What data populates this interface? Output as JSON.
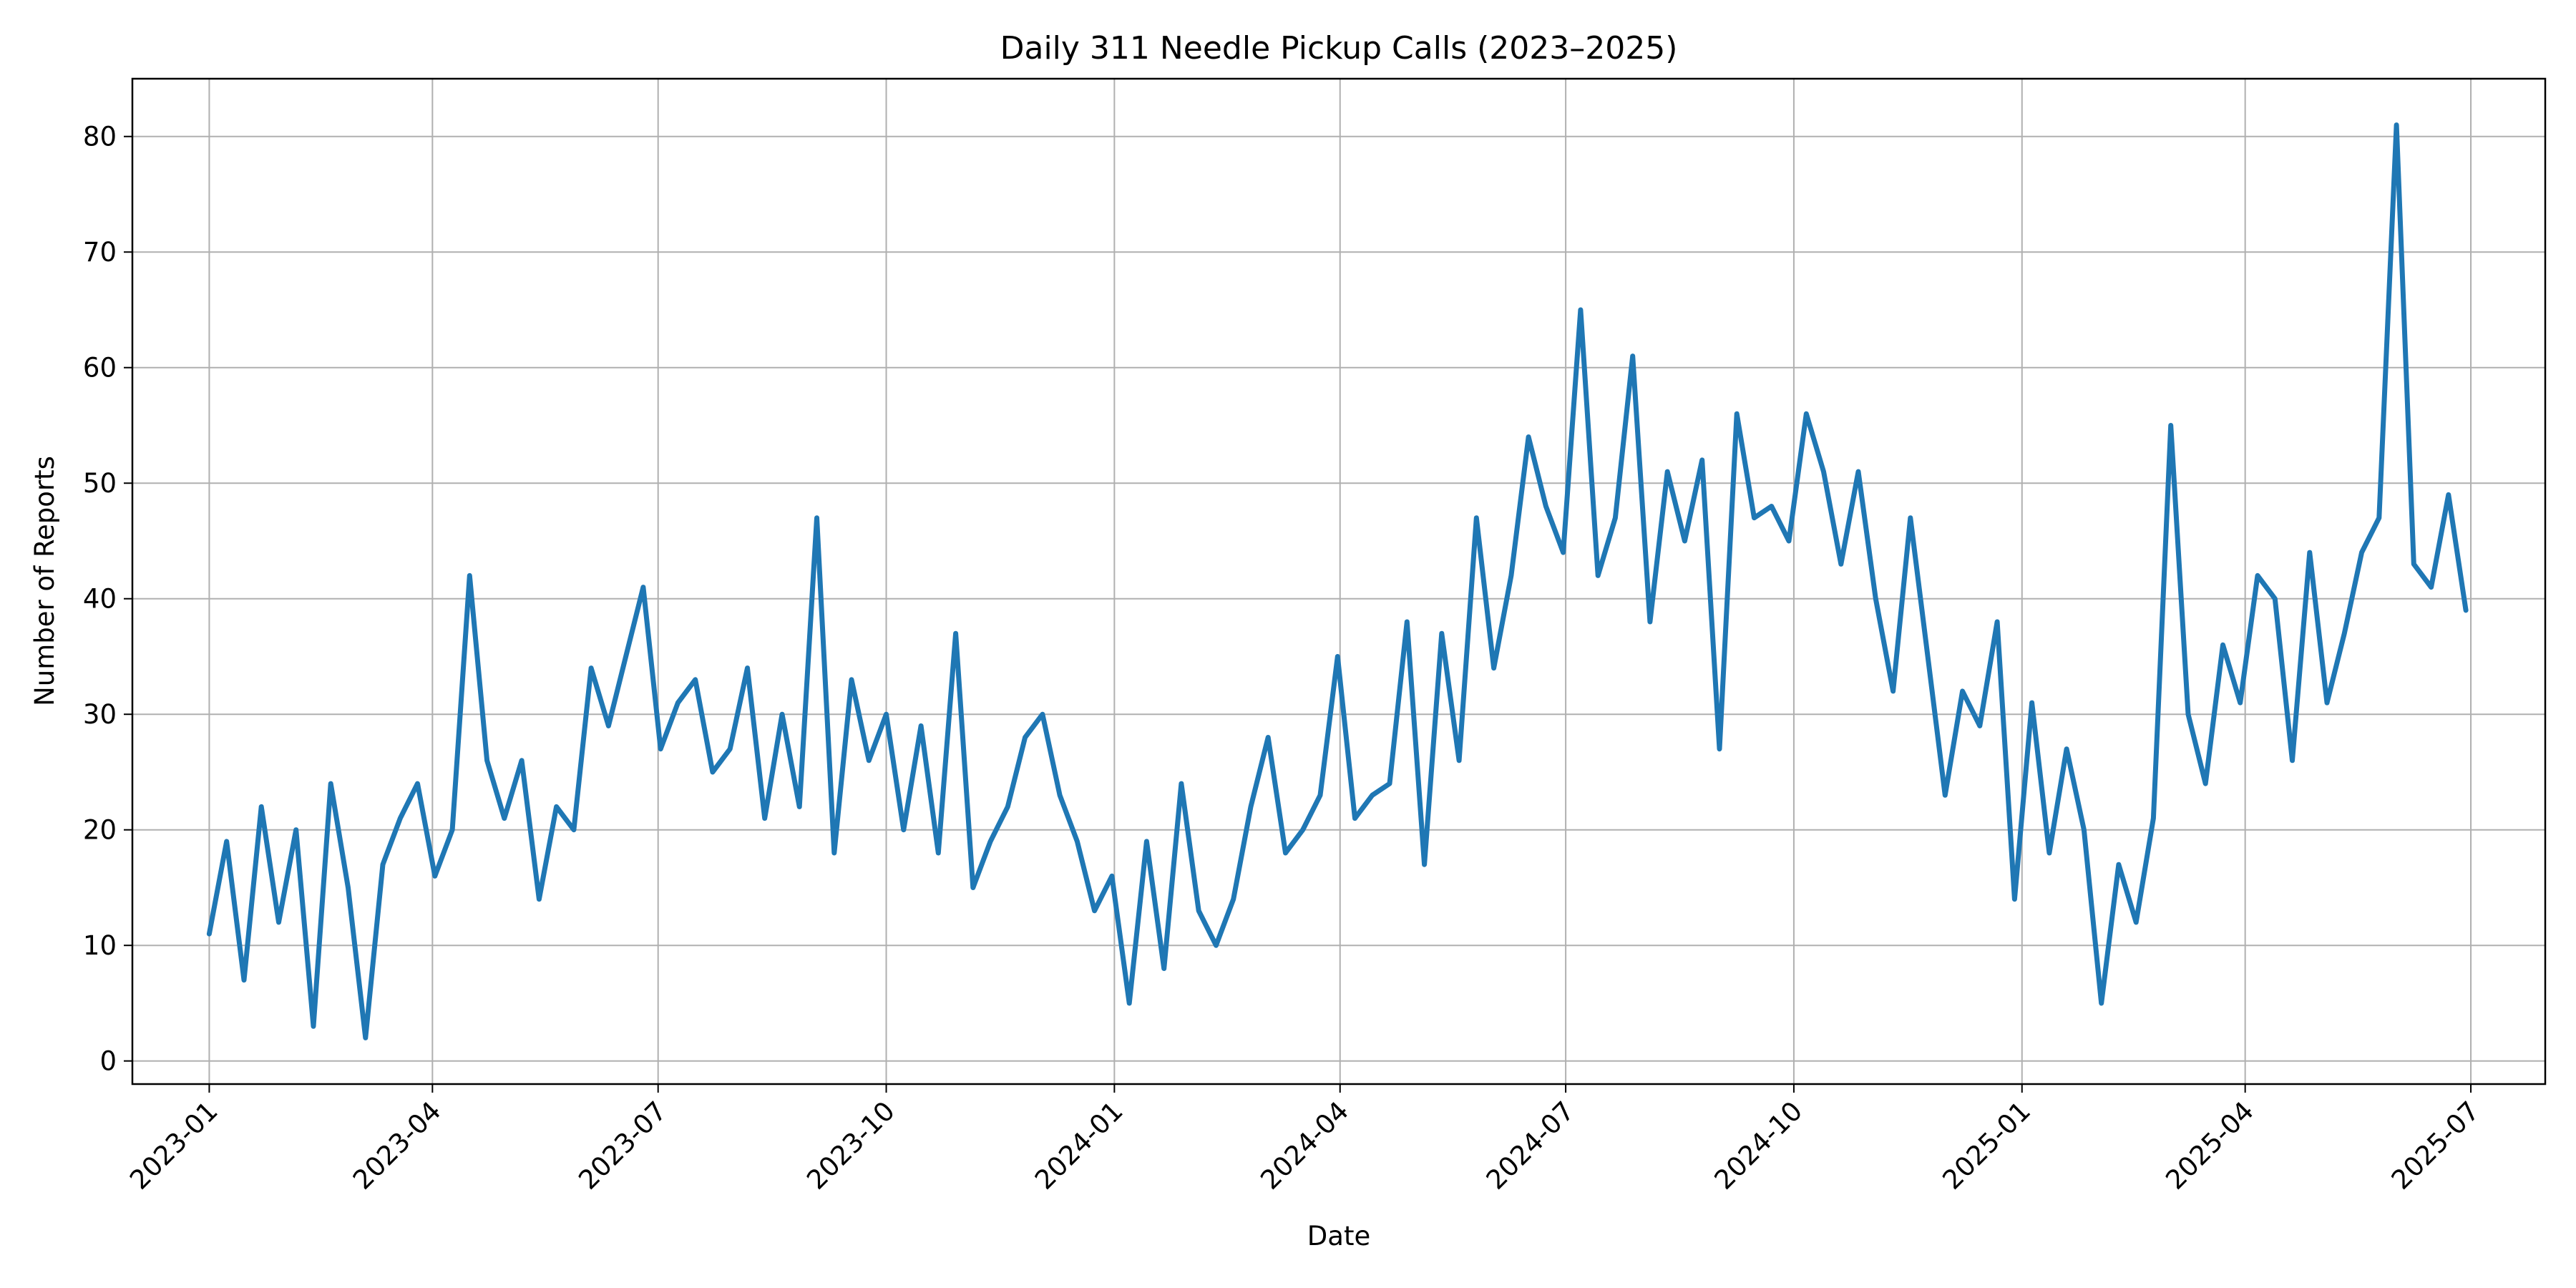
{
  "chart_data": {
    "type": "line",
    "title": "Daily 311 Needle Pickup Calls (2023–2025)",
    "xlabel": "Date",
    "ylabel": "Number of Reports",
    "x_range": [
      "2022-12-01",
      "2025-07-31"
    ],
    "ylim": [
      -2,
      85
    ],
    "grid": true,
    "line_color": "#1f77b4",
    "x_ticks": [
      {
        "date": "2023-01-01",
        "label": "2023-01"
      },
      {
        "date": "2023-04-01",
        "label": "2023-04"
      },
      {
        "date": "2023-07-01",
        "label": "2023-07"
      },
      {
        "date": "2023-10-01",
        "label": "2023-10"
      },
      {
        "date": "2024-01-01",
        "label": "2024-01"
      },
      {
        "date": "2024-04-01",
        "label": "2024-04"
      },
      {
        "date": "2024-07-01",
        "label": "2024-07"
      },
      {
        "date": "2024-10-01",
        "label": "2024-10"
      },
      {
        "date": "2025-01-01",
        "label": "2025-01"
      },
      {
        "date": "2025-04-01",
        "label": "2025-04"
      },
      {
        "date": "2025-07-01",
        "label": "2025-07"
      }
    ],
    "y_ticks": [
      0,
      10,
      20,
      30,
      40,
      50,
      60,
      70,
      80
    ],
    "series": [
      {
        "x": [
          "2023-01-01",
          "2023-01-08",
          "2023-01-15",
          "2023-01-22",
          "2023-01-29",
          "2023-02-05",
          "2023-02-12",
          "2023-02-19",
          "2023-02-26",
          "2023-03-05",
          "2023-03-12",
          "2023-03-19",
          "2023-03-26",
          "2023-04-02",
          "2023-04-09",
          "2023-04-16",
          "2023-04-23",
          "2023-04-30",
          "2023-05-07",
          "2023-05-14",
          "2023-05-21",
          "2023-05-28",
          "2023-06-04",
          "2023-06-11",
          "2023-06-18",
          "2023-06-25",
          "2023-07-02",
          "2023-07-09",
          "2023-07-16",
          "2023-07-23",
          "2023-07-30",
          "2023-08-06",
          "2023-08-13",
          "2023-08-20",
          "2023-08-27",
          "2023-09-03",
          "2023-09-10",
          "2023-09-17",
          "2023-09-24",
          "2023-10-01",
          "2023-10-08",
          "2023-10-15",
          "2023-10-22",
          "2023-10-29",
          "2023-11-05",
          "2023-11-12",
          "2023-11-19",
          "2023-11-26",
          "2023-12-03",
          "2023-12-10",
          "2023-12-17",
          "2023-12-24",
          "2023-12-31",
          "2024-01-07",
          "2024-01-14",
          "2024-01-21",
          "2024-01-28",
          "2024-02-04",
          "2024-02-11",
          "2024-02-18",
          "2024-02-25",
          "2024-03-03",
          "2024-03-10",
          "2024-03-17",
          "2024-03-24",
          "2024-03-31",
          "2024-04-07",
          "2024-04-14",
          "2024-04-21",
          "2024-04-28",
          "2024-05-05",
          "2024-05-12",
          "2024-05-19",
          "2024-05-26",
          "2024-06-02",
          "2024-06-09",
          "2024-06-16",
          "2024-06-23",
          "2024-06-30",
          "2024-07-07",
          "2024-07-14",
          "2024-07-21",
          "2024-07-28",
          "2024-08-04",
          "2024-08-11",
          "2024-08-18",
          "2024-08-25",
          "2024-09-01",
          "2024-09-08",
          "2024-09-15",
          "2024-09-22",
          "2024-09-29",
          "2024-10-06",
          "2024-10-13",
          "2024-10-20",
          "2024-10-27",
          "2024-11-03",
          "2024-11-10",
          "2024-11-17",
          "2024-11-24",
          "2024-12-01",
          "2024-12-08",
          "2024-12-15",
          "2024-12-22",
          "2024-12-29",
          "2025-01-05",
          "2025-01-12",
          "2025-01-19",
          "2025-01-26",
          "2025-02-02",
          "2025-02-09",
          "2025-02-16",
          "2025-02-23",
          "2025-03-02",
          "2025-03-09",
          "2025-03-16",
          "2025-03-23",
          "2025-03-30",
          "2025-04-06",
          "2025-04-13",
          "2025-04-20",
          "2025-04-27",
          "2025-05-04",
          "2025-05-11",
          "2025-05-18",
          "2025-05-25",
          "2025-06-01",
          "2025-06-08",
          "2025-06-15",
          "2025-06-22",
          "2025-06-29"
        ],
        "values": [
          11,
          19,
          7,
          22,
          12,
          20,
          3,
          24,
          15,
          2,
          17,
          21,
          24,
          16,
          20,
          42,
          26,
          21,
          26,
          14,
          22,
          20,
          34,
          29,
          35,
          41,
          27,
          31,
          33,
          25,
          27,
          34,
          21,
          30,
          22,
          47,
          18,
          33,
          26,
          30,
          20,
          29,
          18,
          37,
          15,
          19,
          22,
          28,
          30,
          23,
          19,
          13,
          16,
          5,
          19,
          8,
          24,
          13,
          10,
          14,
          22,
          28,
          18,
          20,
          23,
          35,
          21,
          23,
          24,
          38,
          17,
          37,
          26,
          47,
          34,
          42,
          54,
          48,
          44,
          65,
          42,
          47,
          61,
          38,
          51,
          45,
          52,
          27,
          56,
          47,
          48,
          45,
          56,
          51,
          43,
          51,
          40,
          32,
          47,
          35,
          23,
          32,
          29,
          38,
          14,
          31,
          18,
          27,
          20,
          5,
          17,
          12,
          21,
          55,
          30,
          24,
          36,
          31,
          42,
          40,
          26,
          44,
          31,
          37,
          44,
          47,
          81,
          43,
          41,
          49,
          39
        ]
      }
    ]
  }
}
